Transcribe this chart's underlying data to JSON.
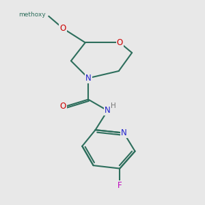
{
  "background_color": "#e8e8e8",
  "bond_color": "#2d6e5c",
  "atom_colors": {
    "O": "#cc0000",
    "N": "#2222cc",
    "F": "#bb00bb",
    "H": "#777777",
    "C": "#2d6e5c"
  }
}
